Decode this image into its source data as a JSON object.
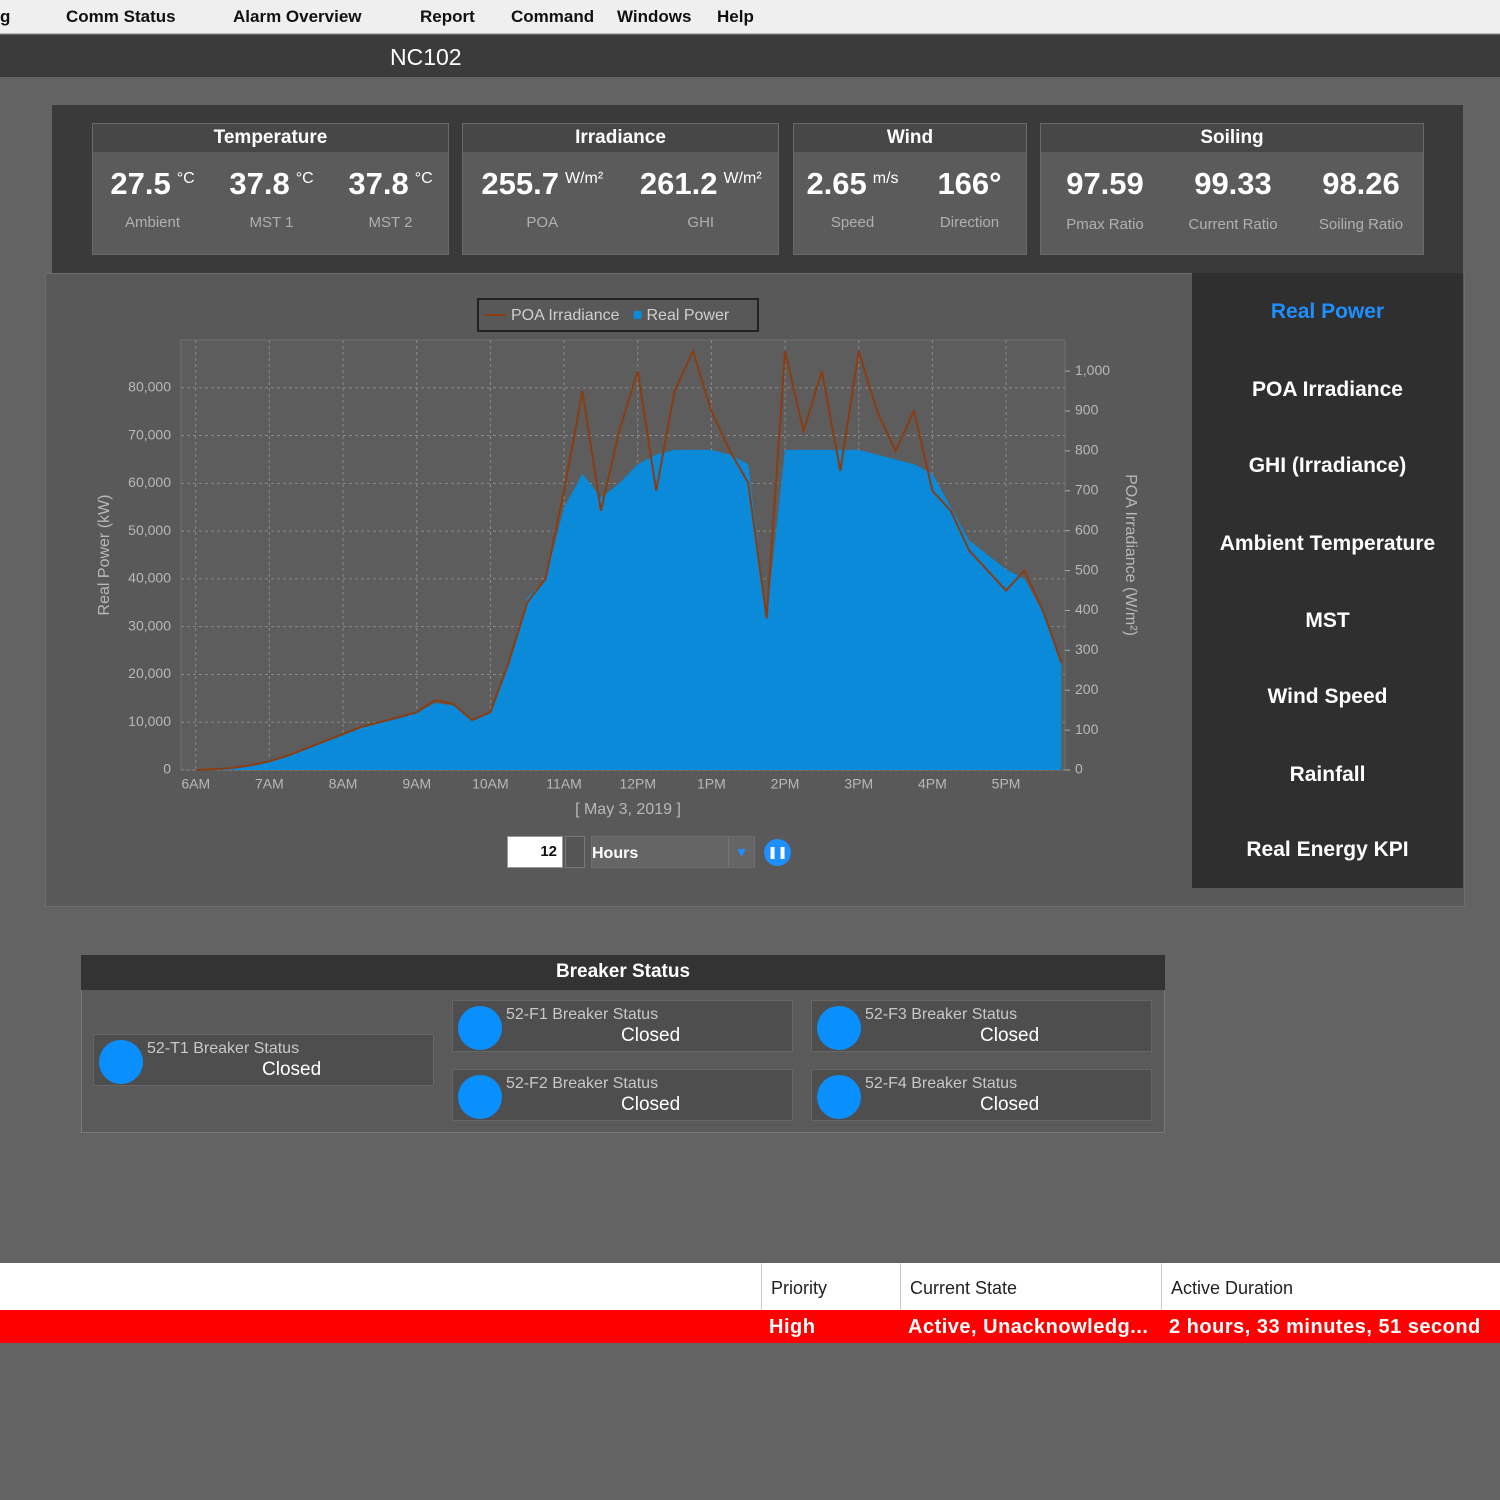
{
  "menu": [
    "g",
    "Comm Status",
    "Alarm Overview",
    "Report",
    "Command",
    "Windows",
    "Help"
  ],
  "header": {
    "title": "NC102"
  },
  "cards": [
    {
      "title": "Temperature",
      "items": [
        {
          "value": "27.5",
          "unit": "°C",
          "label": "Ambient"
        },
        {
          "value": "37.8",
          "unit": "°C",
          "label": "MST 1"
        },
        {
          "value": "37.8",
          "unit": "°C",
          "label": "MST 2"
        }
      ]
    },
    {
      "title": "Irradiance",
      "items": [
        {
          "value": "255.7",
          "unit": "W/m²",
          "label": "POA"
        },
        {
          "value": "261.2",
          "unit": "W/m²",
          "label": "GHI"
        }
      ]
    },
    {
      "title": "Wind",
      "items": [
        {
          "value": "2.65",
          "unit": "m/s",
          "label": "Speed"
        },
        {
          "value": "166°",
          "label": "Direction"
        }
      ]
    },
    {
      "title": "Soiling",
      "items": [
        {
          "value": "97.59",
          "label": "Pmax Ratio"
        },
        {
          "value": "99.33",
          "label": "Current Ratio"
        },
        {
          "value": "98.26",
          "label": "Soiling Ratio"
        }
      ]
    }
  ],
  "chart_data": {
    "type": "area",
    "x_label": "[ May 3, 2019 ]",
    "y_label": "Real Power (kW)",
    "y2_label": "POA Irradiance (W/m²)",
    "legend": "top",
    "grid": true,
    "xlim": [
      5.8,
      17.8
    ],
    "xticks": [
      {
        "value": 6,
        "label": "6AM"
      },
      {
        "value": 7,
        "label": "7AM"
      },
      {
        "value": 8,
        "label": "8AM"
      },
      {
        "value": 9,
        "label": "9AM"
      },
      {
        "value": 10,
        "label": "10AM"
      },
      {
        "value": 11,
        "label": "11AM"
      },
      {
        "value": 12,
        "label": "12PM"
      },
      {
        "value": 13,
        "label": "1PM"
      },
      {
        "value": 14,
        "label": "2PM"
      },
      {
        "value": 15,
        "label": "3PM"
      },
      {
        "value": 16,
        "label": "4PM"
      },
      {
        "value": 17,
        "label": "5PM"
      }
    ],
    "ylim": [
      0,
      90000
    ],
    "yticks": [
      0,
      {
        "value": 10000,
        "label": "10,000"
      },
      {
        "value": 20000,
        "label": "20,000"
      },
      {
        "value": 30000,
        "label": "30,000"
      },
      {
        "value": 40000,
        "label": "40,000"
      },
      {
        "value": 50000,
        "label": "50,000"
      },
      {
        "value": 60000,
        "label": "60,000"
      },
      {
        "value": 70000,
        "label": "70,000"
      },
      {
        "value": 80000,
        "label": "80,000"
      }
    ],
    "y2lim": [
      0,
      1078
    ],
    "y2ticks": [
      0,
      100,
      200,
      300,
      400,
      500,
      600,
      700,
      800,
      900,
      {
        "value": 1000,
        "label": "1,000"
      }
    ],
    "x": [
      6.0,
      6.25,
      6.5,
      6.75,
      7.0,
      7.25,
      7.5,
      7.75,
      8.0,
      8.25,
      8.5,
      8.75,
      9.0,
      9.25,
      9.5,
      9.75,
      10.0,
      10.25,
      10.5,
      10.75,
      11.0,
      11.25,
      11.5,
      11.75,
      12.0,
      12.25,
      12.5,
      12.75,
      13.0,
      13.25,
      13.5,
      13.75,
      14.0,
      14.25,
      14.5,
      14.75,
      15.0,
      15.25,
      15.5,
      15.75,
      16.0,
      16.25,
      16.5,
      16.75,
      17.0,
      17.25,
      17.5,
      17.75
    ],
    "series": [
      {
        "name": "POA Irradiance",
        "type": "line",
        "axis": "y2",
        "color": "#8b3d12",
        "values": [
          0,
          2,
          5,
          12,
          22,
          36,
          54,
          72,
          90,
          108,
          120,
          132,
          145,
          175,
          165,
          125,
          145,
          270,
          420,
          480,
          700,
          950,
          650,
          850,
          1000,
          700,
          950,
          1050,
          900,
          800,
          720,
          380,
          1050,
          850,
          1000,
          750,
          1050,
          900,
          800,
          900,
          700,
          650,
          550,
          500,
          450,
          500,
          400,
          270
        ]
      },
      {
        "name": "Real Power",
        "type": "area",
        "color": "#0a8ad8",
        "values": [
          0,
          0,
          300,
          800,
          1800,
          3000,
          4500,
          6000,
          7500,
          9000,
          10000,
          11000,
          12000,
          14000,
          13500,
          10500,
          12000,
          22000,
          36000,
          40000,
          55000,
          62000,
          57000,
          60000,
          64000,
          66000,
          67000,
          67000,
          67000,
          66000,
          64000,
          32000,
          67000,
          67000,
          67000,
          67000,
          67000,
          66000,
          65000,
          64000,
          62000,
          55000,
          48000,
          45000,
          42000,
          40000,
          33000,
          22000
        ]
      }
    ]
  },
  "controls": {
    "period": "12",
    "unit": "Hours"
  },
  "side_menu": [
    "Real Power",
    "POA Irradiance",
    "GHI (Irradiance)",
    "Ambient Temperature",
    "MST",
    "Wind Speed",
    "Rainfall",
    "Real Energy KPI"
  ],
  "breaker_status": {
    "title": "Breaker Status",
    "items": [
      {
        "name": "52-T1 Breaker Status",
        "state": "Closed"
      },
      {
        "name": "52-F1 Breaker Status",
        "state": "Closed"
      },
      {
        "name": "52-F2 Breaker Status",
        "state": "Closed"
      },
      {
        "name": "52-F3 Breaker Status",
        "state": "Closed"
      },
      {
        "name": "52-F4 Breaker Status",
        "state": "Closed"
      }
    ]
  },
  "alarms": {
    "columns": [
      "Priority",
      "Current State",
      "Active Duration"
    ],
    "rows": [
      [
        "High",
        "Active, Unacknowledg...",
        "2 hours, 33 minutes, 51 second"
      ]
    ]
  }
}
